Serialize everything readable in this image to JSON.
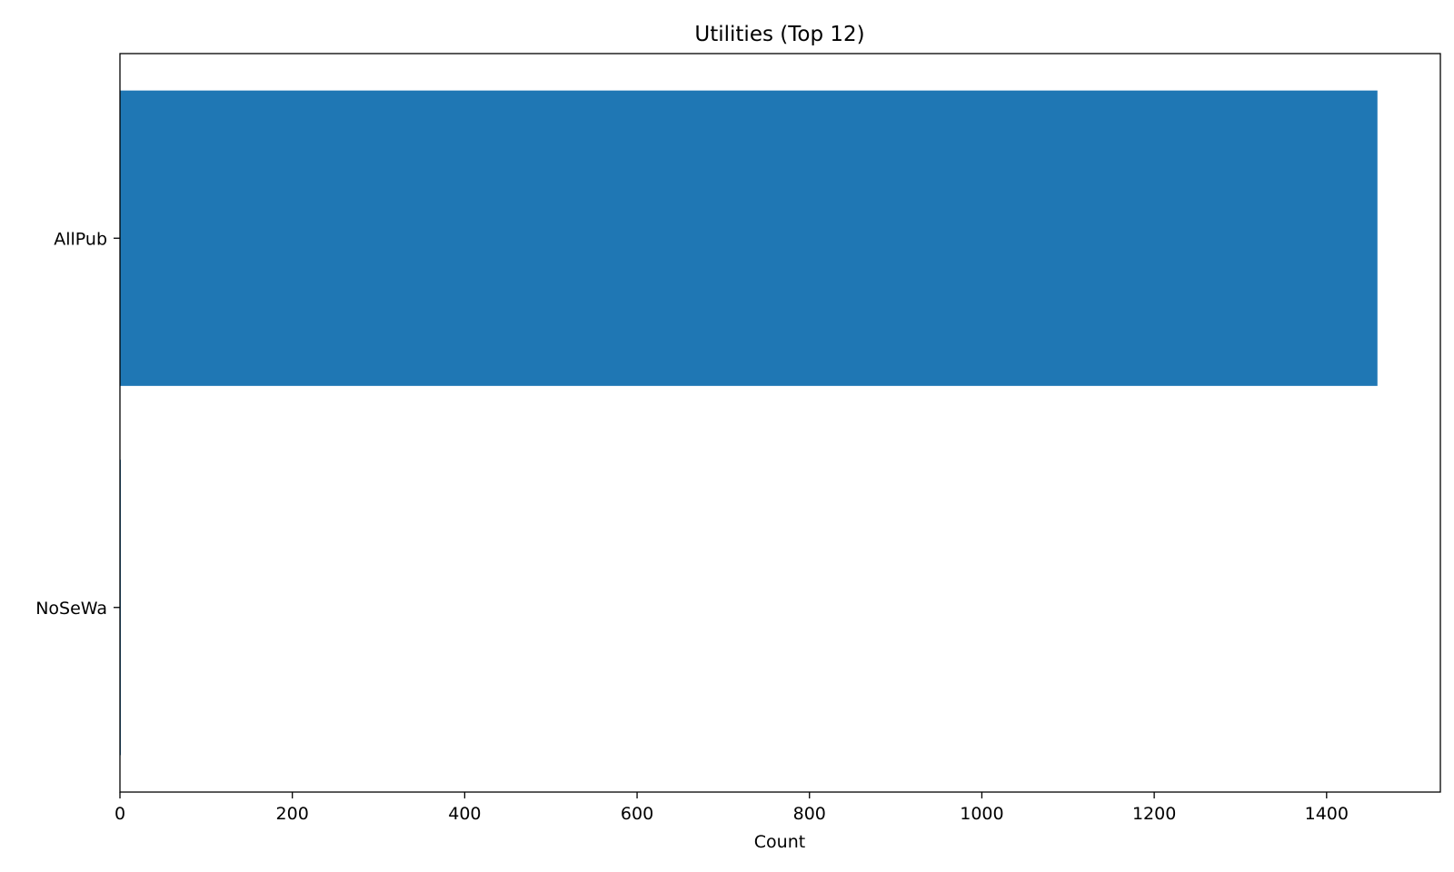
{
  "chart_data": {
    "type": "bar",
    "orientation": "horizontal",
    "title": "Utilities (Top 12)",
    "xlabel": "Count",
    "ylabel": "",
    "categories": [
      "AllPub",
      "NoSeWa"
    ],
    "values": [
      1459,
      1
    ],
    "xlim": [
      0,
      1532
    ],
    "xticks": [
      0,
      200,
      400,
      600,
      800,
      1000,
      1200,
      1400
    ],
    "bar_color": "#1f77b4",
    "grid": false,
    "legend": "none"
  }
}
